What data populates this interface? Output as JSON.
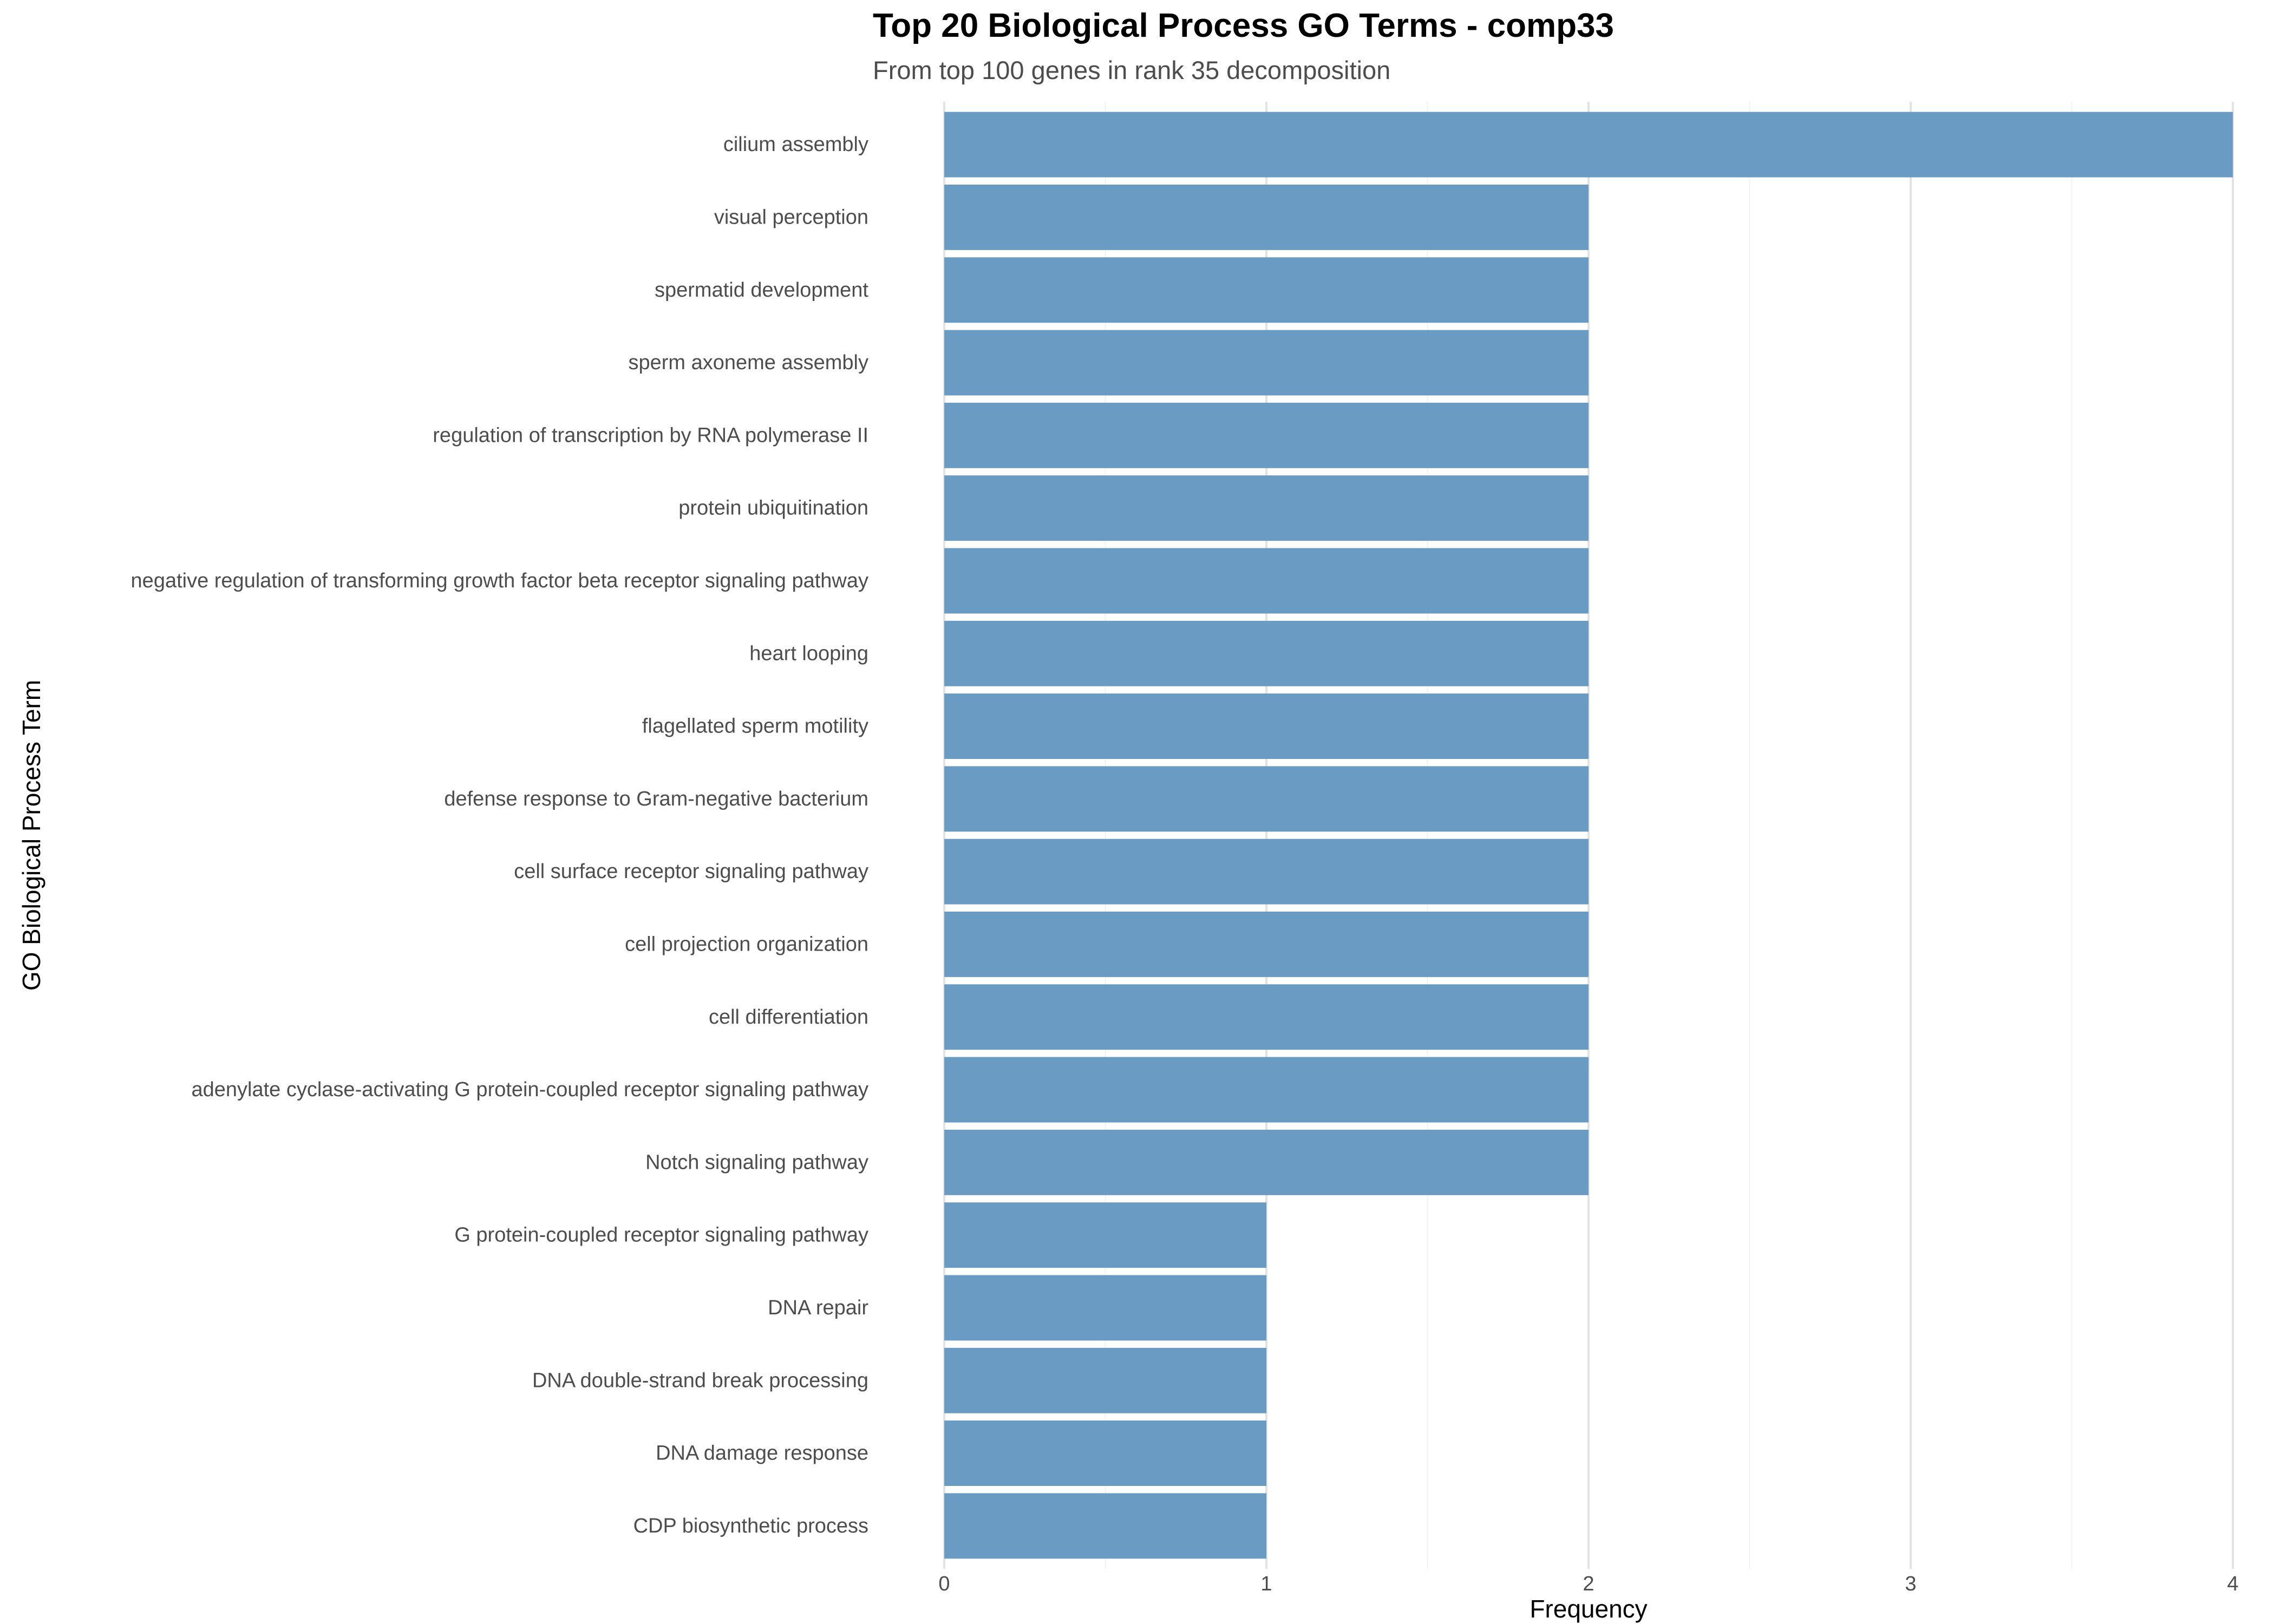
{
  "chart_data": {
    "type": "bar",
    "orientation": "horizontal",
    "title": "Top 20 Biological Process GO Terms - comp33",
    "subtitle": "From top 100 genes in rank 35 decomposition",
    "xlabel": "Frequency",
    "ylabel": "GO Biological Process Term",
    "xlim": [
      0,
      4
    ],
    "xticks": [
      "0",
      "1",
      "2",
      "3",
      "4"
    ],
    "grid": true,
    "bar_color": "#6a9bc3",
    "categories": [
      "cilium assembly",
      "visual perception",
      "spermatid development",
      "sperm axoneme assembly",
      "regulation of transcription by RNA polymerase II",
      "protein ubiquitination",
      "negative regulation of transforming growth factor beta receptor signaling pathway",
      "heart looping",
      "flagellated sperm motility",
      "defense response to Gram-negative bacterium",
      "cell surface receptor signaling pathway",
      "cell projection organization",
      "cell differentiation",
      "adenylate cyclase-activating G protein-coupled receptor signaling pathway",
      "Notch signaling pathway",
      "G protein-coupled receptor signaling pathway",
      "DNA repair",
      "DNA double-strand break processing",
      "DNA damage response",
      "CDP biosynthetic process"
    ],
    "values": [
      4,
      2,
      2,
      2,
      2,
      2,
      2,
      2,
      2,
      2,
      2,
      2,
      2,
      2,
      2,
      1,
      1,
      1,
      1,
      1
    ]
  }
}
